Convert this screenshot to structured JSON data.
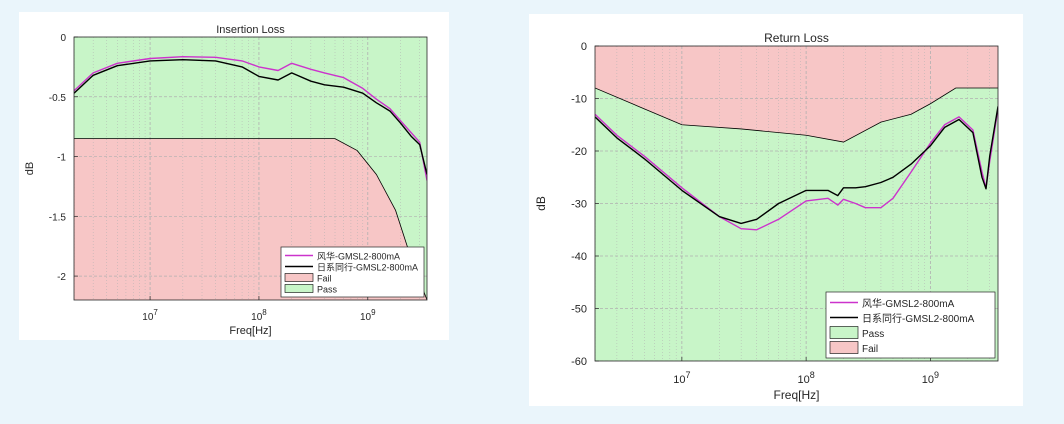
{
  "colors": {
    "page_background": "#eaf5fb",
    "fail_fill": "#f7c6c6",
    "pass_fill": "#c8f5c8",
    "series_fenghua": "#cc33cc",
    "series_rixi": "#000000",
    "grid": "#b0b0b0"
  },
  "chart_data": [
    {
      "type": "line",
      "title": "Insertion Loss",
      "xlabel": "Freq[Hz]",
      "ylabel": "dB",
      "xscale": "log",
      "xlim": [
        2000000,
        3500000000
      ],
      "ylim": [
        -2.2,
        0
      ],
      "yticks": [
        0,
        -0.5,
        -1,
        -1.5,
        -2
      ],
      "ytick_labels": [
        "0",
        "-0.5",
        "-1",
        "-1.5",
        "-2"
      ],
      "xticks": [
        10000000,
        100000000,
        1000000000
      ],
      "xtick_labels": [
        {
          "base": "10",
          "exp": "7"
        },
        {
          "base": "10",
          "exp": "8"
        },
        {
          "base": "10",
          "exp": "9"
        }
      ],
      "grid": true,
      "legend_position": "bottom-right",
      "legend": [
        {
          "label": "风华-GMSL2-800mA",
          "kind": "line",
          "color": "#cc33cc"
        },
        {
          "label": "日系同行-GMSL2-800mA",
          "kind": "line",
          "color": "#000000"
        },
        {
          "label": "Fail",
          "kind": "patch",
          "color": "#f7c6c6"
        },
        {
          "label": "Pass",
          "kind": "patch",
          "color": "#c8f5c8"
        }
      ],
      "limit_mask": {
        "x": [
          2000000,
          5000000,
          10000000,
          50000000,
          100000000,
          500000000,
          800000000,
          1200000000,
          1800000000,
          2500000000,
          3500000000
        ],
        "y": [
          -0.85,
          -0.85,
          -0.85,
          -0.85,
          -0.85,
          -0.85,
          -0.95,
          -1.15,
          -1.45,
          -1.85,
          -2.2
        ]
      },
      "series": [
        {
          "name": "风华-GMSL2-800mA",
          "x": [
            2000000,
            3000000,
            5000000,
            10000000,
            20000000,
            40000000,
            70000000,
            100000000,
            150000000,
            200000000,
            300000000,
            400000000,
            600000000,
            900000000,
            1200000000,
            1600000000,
            2000000000,
            2500000000,
            3000000000,
            3500000000
          ],
          "y": [
            -0.45,
            -0.3,
            -0.22,
            -0.18,
            -0.165,
            -0.17,
            -0.2,
            -0.25,
            -0.28,
            -0.22,
            -0.27,
            -0.3,
            -0.34,
            -0.43,
            -0.52,
            -0.6,
            -0.7,
            -0.8,
            -0.88,
            -1.2
          ]
        },
        {
          "name": "日系同行-GMSL2-800mA",
          "x": [
            2000000,
            3000000,
            5000000,
            10000000,
            20000000,
            40000000,
            70000000,
            100000000,
            150000000,
            200000000,
            300000000,
            400000000,
            600000000,
            900000000,
            1200000000,
            1600000000,
            2000000000,
            2500000000,
            3000000000,
            3500000000
          ],
          "y": [
            -0.47,
            -0.32,
            -0.24,
            -0.2,
            -0.19,
            -0.2,
            -0.25,
            -0.33,
            -0.36,
            -0.3,
            -0.37,
            -0.4,
            -0.42,
            -0.47,
            -0.55,
            -0.62,
            -0.72,
            -0.83,
            -0.9,
            -1.15
          ]
        }
      ]
    },
    {
      "type": "line",
      "title": "Return Loss",
      "xlabel": "Freq[Hz]",
      "ylabel": "dB",
      "xscale": "log",
      "xlim": [
        2000000,
        3500000000
      ],
      "ylim": [
        -60,
        0
      ],
      "yticks": [
        0,
        -10,
        -20,
        -30,
        -40,
        -50,
        -60
      ],
      "ytick_labels": [
        "0",
        "-10",
        "-20",
        "-30",
        "-40",
        "-50",
        "-60"
      ],
      "xticks": [
        10000000,
        100000000,
        1000000000
      ],
      "xtick_labels": [
        {
          "base": "10",
          "exp": "7"
        },
        {
          "base": "10",
          "exp": "8"
        },
        {
          "base": "10",
          "exp": "9"
        }
      ],
      "grid": true,
      "legend_position": "bottom-right",
      "legend": [
        {
          "label": "风华-GMSL2-800mA",
          "kind": "line",
          "color": "#cc33cc"
        },
        {
          "label": "日系同行-GMSL2-800mA",
          "kind": "line",
          "color": "#000000"
        },
        {
          "label": "Pass",
          "kind": "patch",
          "color": "#c8f5c8"
        },
        {
          "label": "Fail",
          "kind": "patch",
          "color": "#f7c6c6"
        }
      ],
      "limit_mask": {
        "x": [
          2000000,
          10000000,
          30000000,
          100000000,
          200000000,
          400000000,
          700000000,
          1000000000,
          1600000000,
          3500000000
        ],
        "y": [
          -8,
          -15,
          -15.8,
          -17,
          -18.3,
          -14.5,
          -13,
          -11,
          -8,
          -8
        ]
      },
      "series": [
        {
          "name": "风华-GMSL2-800mA",
          "x": [
            2000000,
            3000000,
            5000000,
            10000000,
            20000000,
            30000000,
            40000000,
            60000000,
            100000000,
            150000000,
            180000000,
            200000000,
            250000000,
            300000000,
            400000000,
            500000000,
            700000000,
            1000000000,
            1300000000,
            1700000000,
            2200000000,
            2600000000,
            2800000000,
            3000000000,
            3500000000
          ],
          "y": [
            -13,
            -17,
            -21,
            -27,
            -32.5,
            -34.8,
            -35,
            -33,
            -29.5,
            -29,
            -30.3,
            -29.2,
            -30,
            -30.8,
            -30.8,
            -29,
            -24,
            -18.5,
            -15,
            -13.5,
            -16,
            -24,
            -27,
            -22,
            -12
          ]
        },
        {
          "name": "日系同行-GMSL2-800mA",
          "x": [
            2000000,
            3000000,
            5000000,
            10000000,
            20000000,
            30000000,
            40000000,
            60000000,
            100000000,
            150000000,
            180000000,
            200000000,
            250000000,
            300000000,
            400000000,
            500000000,
            700000000,
            1000000000,
            1300000000,
            1700000000,
            2200000000,
            2600000000,
            2800000000,
            3000000000,
            3500000000
          ],
          "y": [
            -13.5,
            -17.5,
            -21.5,
            -27.5,
            -32.5,
            -33.8,
            -33,
            -30,
            -27.5,
            -27.5,
            -28.5,
            -27,
            -27,
            -26.8,
            -26,
            -25,
            -22.5,
            -19,
            -15.5,
            -14,
            -16.5,
            -25,
            -27.2,
            -21,
            -11.5
          ]
        }
      ]
    }
  ]
}
